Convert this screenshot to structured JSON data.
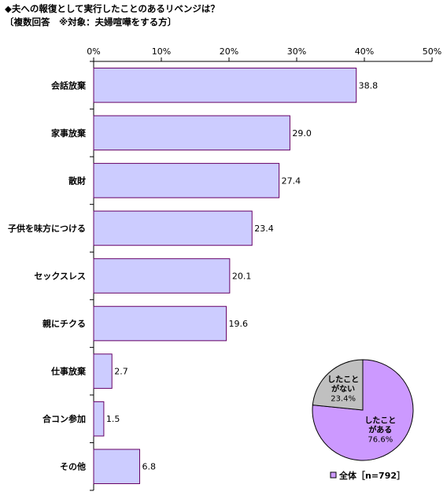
{
  "title": "◆夫への報復として実行したことのあるリベンジは？",
  "subtitle": "〔複数回答　※対象：夫婦喧嘩をする方〕",
  "chart_data": [
    {
      "type": "bar",
      "orientation": "horizontal",
      "categories": [
        "会話放棄",
        "家事放棄",
        "散財",
        "子供を味方につける",
        "セックスレス",
        "親にチクる",
        "仕事放棄",
        "合コン参加",
        "その他"
      ],
      "values": [
        38.8,
        29.0,
        27.4,
        23.4,
        20.1,
        19.6,
        2.7,
        1.5,
        6.8
      ],
      "value_labels": [
        "38.8",
        "29.0",
        "27.4",
        "23.4",
        "20.1",
        "19.6",
        "2.7",
        "1.5",
        "6.8"
      ],
      "xlim": [
        0,
        50
      ],
      "ticks": [
        0,
        10,
        20,
        30,
        40,
        50
      ],
      "tick_labels": [
        "0%",
        "10%",
        "20%",
        "30%",
        "40%",
        "50%"
      ],
      "grid": false,
      "colors": {
        "bar_fill": "#ccccff",
        "bar_stroke": "#660066"
      }
    },
    {
      "type": "pie",
      "slices": [
        {
          "label_lines": [
            "したこと",
            "がある",
            "76.6%"
          ],
          "value": 76.6,
          "color": "#cc99ff"
        },
        {
          "label_lines": [
            "したこと",
            "がない",
            "23.4%"
          ],
          "value": 23.4,
          "color": "#c0c0c0"
        }
      ],
      "legend": {
        "label": "全体［n=792］",
        "color": "#cc99ff"
      }
    }
  ]
}
